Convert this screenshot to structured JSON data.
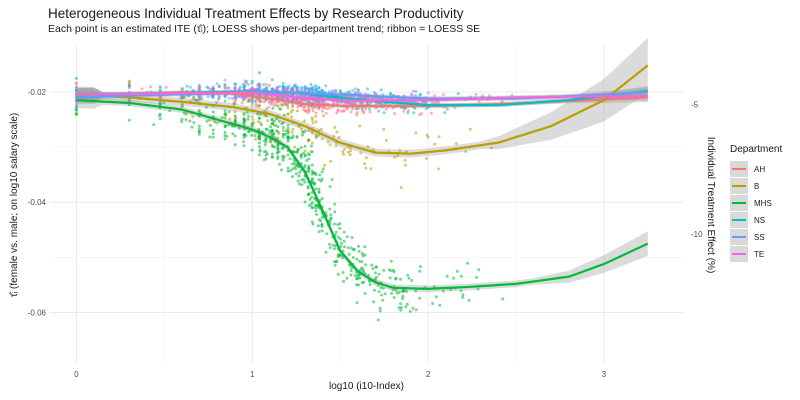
{
  "chart_data": {
    "type": "scatter",
    "title": "Heterogeneous Individual Treatment Effects by Research Productivity",
    "subtitle": "Each point is an estimated ITE (τ̂ᵢ); LOESS shows per-department trend; ribbon = LOESS SE",
    "xlabel": "log10 (i10-Index)",
    "ylabel": "τ̂ᵢ (female vs. male; on log10 salary scale)",
    "y2label": "Individual Treatment Effect (%)",
    "xlim": [
      -0.15,
      3.45
    ],
    "ylim": [
      -0.0695,
      -0.0115
    ],
    "x_ticks": [
      0,
      1,
      2,
      3
    ],
    "y_ticks": [
      -0.06,
      -0.04,
      -0.02
    ],
    "y2_ticks": [
      -5,
      -10
    ],
    "legend_title": "Department",
    "legend_position": "right",
    "series": [
      {
        "name": "AH",
        "color": "#F8766D",
        "trend_x": [
          0,
          0.3,
          0.6,
          0.9,
          1.1,
          1.3,
          1.5,
          1.8,
          2.1,
          2.4,
          2.7,
          3.0,
          3.25
        ],
        "trend_y": [
          -0.0205,
          -0.0204,
          -0.0201,
          -0.0203,
          -0.0212,
          -0.0222,
          -0.0225,
          -0.0226,
          -0.0225,
          -0.0222,
          -0.0218,
          -0.0214,
          -0.021
        ]
      },
      {
        "name": "B",
        "color": "#B79F00",
        "trend_x": [
          0,
          0.3,
          0.6,
          0.9,
          1.1,
          1.3,
          1.5,
          1.7,
          1.9,
          2.1,
          2.4,
          2.7,
          3.0,
          3.25
        ],
        "trend_y": [
          -0.0205,
          -0.021,
          -0.0218,
          -0.0228,
          -0.024,
          -0.0262,
          -0.0292,
          -0.031,
          -0.0312,
          -0.0306,
          -0.0292,
          -0.0262,
          -0.0215,
          -0.0152
        ]
      },
      {
        "name": "MHS",
        "color": "#00BA38",
        "trend_x": [
          0,
          0.3,
          0.6,
          0.8,
          1.0,
          1.1,
          1.2,
          1.3,
          1.4,
          1.5,
          1.6,
          1.7,
          1.8,
          2.0,
          2.2,
          2.5,
          2.8,
          3.0,
          3.25
        ],
        "trend_y": [
          -0.0215,
          -0.022,
          -0.0232,
          -0.025,
          -0.0268,
          -0.0282,
          -0.03,
          -0.0345,
          -0.0415,
          -0.0488,
          -0.0525,
          -0.0545,
          -0.0555,
          -0.0557,
          -0.0554,
          -0.0548,
          -0.0535,
          -0.0512,
          -0.0475
        ]
      },
      {
        "name": "NS",
        "color": "#00BFC4",
        "trend_x": [
          0,
          0.5,
          1.0,
          1.3,
          1.6,
          2.0,
          2.4,
          2.8,
          3.25
        ],
        "trend_y": [
          -0.0205,
          -0.0203,
          -0.0199,
          -0.0203,
          -0.0214,
          -0.0224,
          -0.0224,
          -0.0215,
          -0.0198
        ]
      },
      {
        "name": "SS",
        "color": "#619CFF",
        "trend_x": [
          0,
          0.5,
          1.0,
          1.5,
          2.0,
          2.5,
          3.0,
          3.25
        ],
        "trend_y": [
          -0.021,
          -0.0205,
          -0.02,
          -0.0205,
          -0.0212,
          -0.0212,
          -0.0205,
          -0.02
        ]
      },
      {
        "name": "TE",
        "color": "#F564E3",
        "trend_x": [
          0,
          0.5,
          1.0,
          1.3,
          1.6,
          2.0,
          2.5,
          3.0,
          3.25
        ],
        "trend_y": [
          -0.0205,
          -0.0203,
          -0.0201,
          -0.0212,
          -0.0216,
          -0.0215,
          -0.021,
          -0.0208,
          -0.0208
        ]
      }
    ]
  }
}
